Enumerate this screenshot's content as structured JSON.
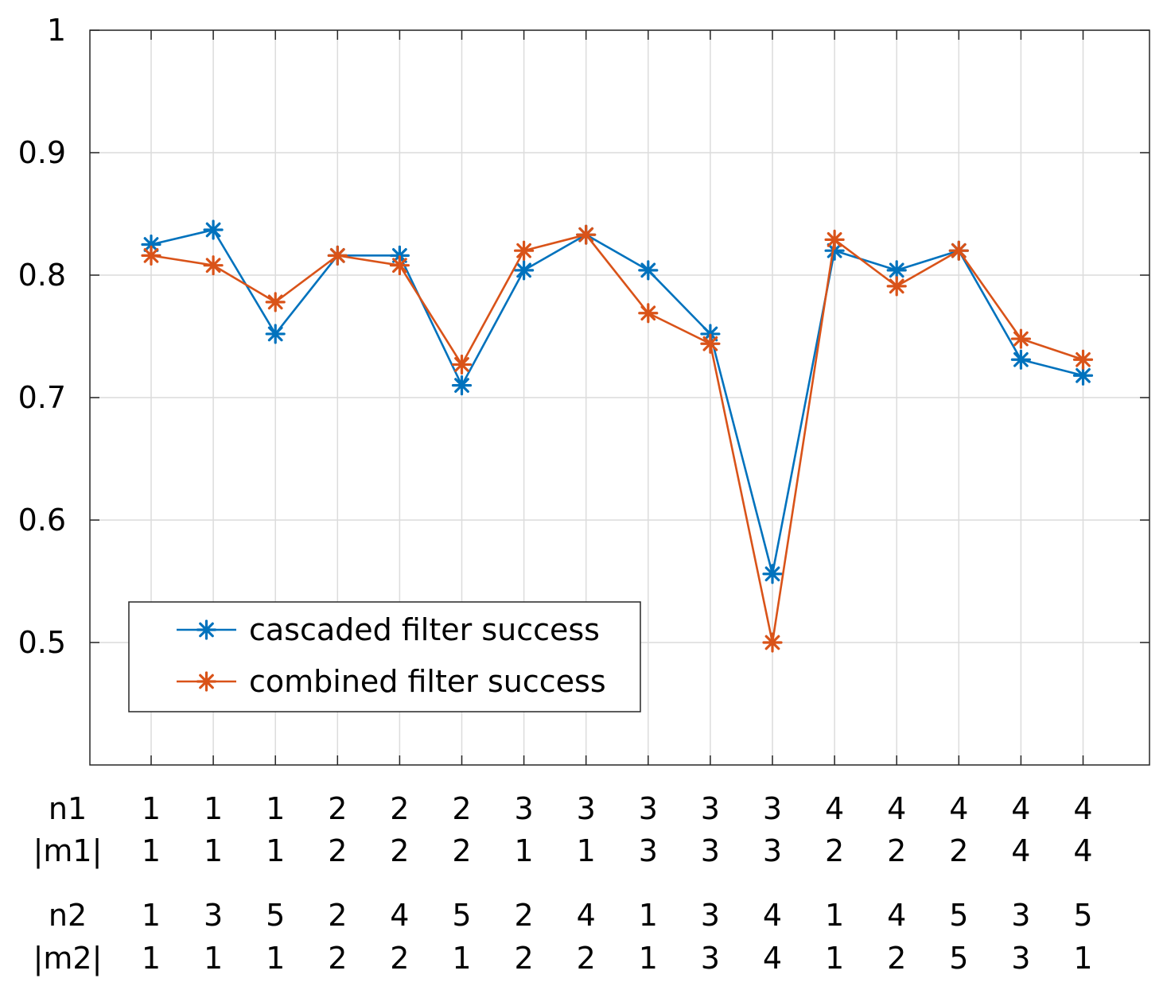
{
  "chart_data": {
    "type": "line",
    "title": "",
    "xlabel": "",
    "ylabel": "",
    "ylim": [
      0.4,
      1.0
    ],
    "yticks": [
      0.5,
      0.6,
      0.7,
      0.8,
      0.9,
      1.0
    ],
    "ytick_labels": [
      "0.5",
      "0.6",
      "0.7",
      "0.8",
      "0.9",
      "1"
    ],
    "grid": true,
    "legend_position": "lower-left",
    "category_rows": [
      {
        "label": "n1",
        "values": [
          "1",
          "1",
          "1",
          "2",
          "2",
          "2",
          "3",
          "3",
          "3",
          "3",
          "3",
          "4",
          "4",
          "4",
          "4",
          "4"
        ]
      },
      {
        "label": "|m1|",
        "values": [
          "1",
          "1",
          "1",
          "2",
          "2",
          "2",
          "1",
          "1",
          "3",
          "3",
          "3",
          "2",
          "2",
          "2",
          "4",
          "4"
        ]
      },
      {
        "label": "n2",
        "values": [
          "1",
          "3",
          "5",
          "2",
          "4",
          "5",
          "2",
          "4",
          "1",
          "3",
          "4",
          "1",
          "4",
          "5",
          "3",
          "5"
        ]
      },
      {
        "label": "|m2|",
        "values": [
          "1",
          "1",
          "1",
          "2",
          "2",
          "1",
          "2",
          "2",
          "1",
          "3",
          "4",
          "1",
          "2",
          "5",
          "3",
          "1"
        ]
      }
    ],
    "series": [
      {
        "name": "cascaded filter success",
        "color": "#0072BD",
        "marker": "asterisk",
        "values": [
          0.825,
          0.837,
          0.752,
          0.816,
          0.816,
          0.71,
          0.804,
          0.833,
          0.804,
          0.752,
          0.556,
          0.82,
          0.804,
          0.82,
          0.731,
          0.718
        ]
      },
      {
        "name": "combined filter success",
        "color": "#D95319",
        "marker": "asterisk",
        "values": [
          0.816,
          0.808,
          0.778,
          0.816,
          0.808,
          0.727,
          0.82,
          0.833,
          0.769,
          0.744,
          0.5,
          0.829,
          0.791,
          0.82,
          0.748,
          0.731
        ]
      }
    ]
  }
}
